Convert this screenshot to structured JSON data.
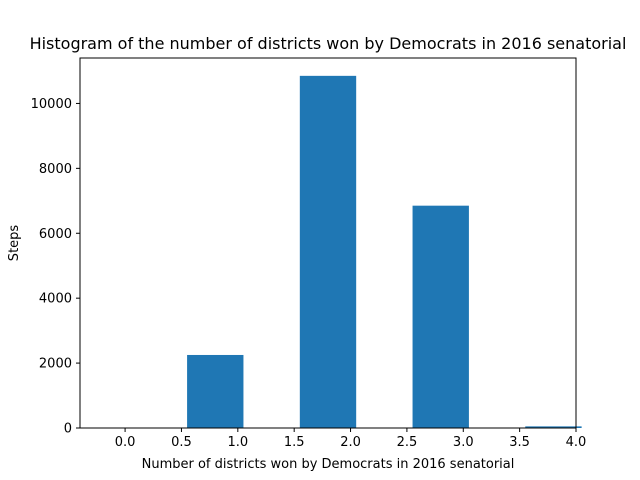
{
  "chart_data": {
    "type": "bar",
    "title": "Histogram of the number of districts won by Democrats in 2016 senatorial",
    "xlabel": "Number of districts won by Democrats in 2016 senatorial",
    "ylabel": "Steps",
    "xlim": [
      -0.4,
      4.0
    ],
    "ylim": [
      0,
      11400
    ],
    "xticks": [
      "0.0",
      "0.5",
      "1.0",
      "1.5",
      "2.0",
      "2.5",
      "3.0",
      "3.5",
      "4.0"
    ],
    "yticks": [
      "0",
      "2000",
      "4000",
      "6000",
      "8000",
      "10000"
    ],
    "bar_width": 0.5,
    "bins": [
      {
        "x": 0.3,
        "value": 0
      },
      {
        "x": 0.8,
        "value": 2250
      },
      {
        "x": 1.3,
        "value": 0
      },
      {
        "x": 1.8,
        "value": 10850
      },
      {
        "x": 2.3,
        "value": 0
      },
      {
        "x": 2.8,
        "value": 6850
      },
      {
        "x": 3.3,
        "value": 0
      },
      {
        "x": 3.8,
        "value": 50
      }
    ],
    "color": "#1f77b4",
    "grid": false,
    "legend": "none"
  }
}
